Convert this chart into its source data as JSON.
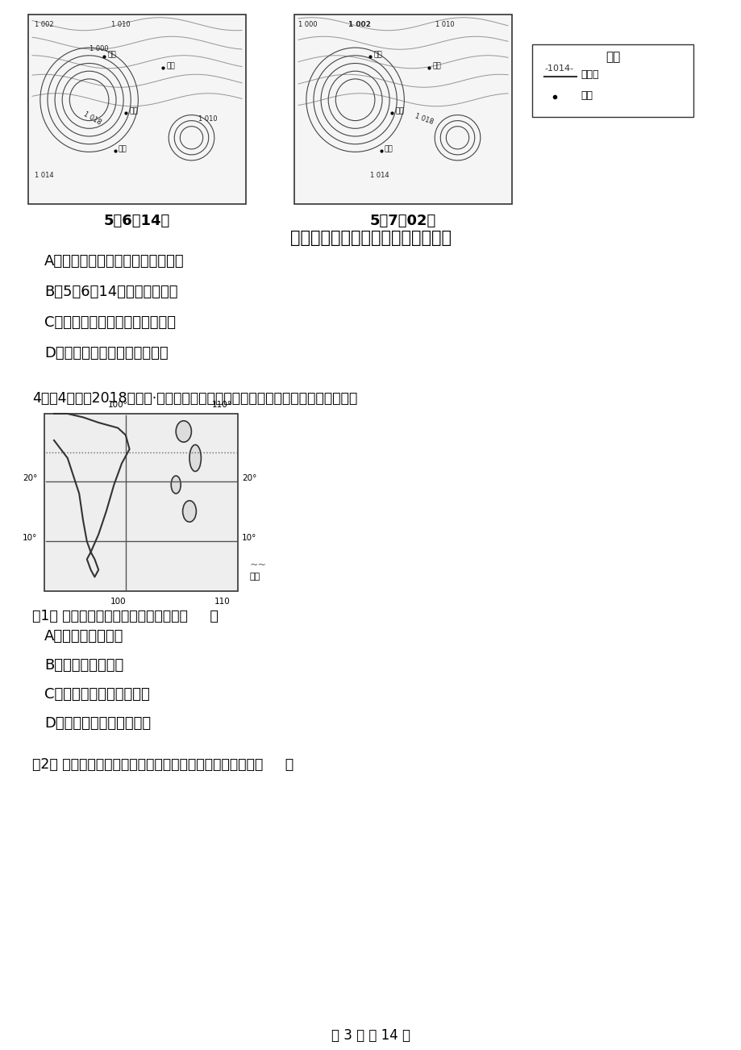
{
  "bg_color": "#ffffff",
  "text_color": "#000000",
  "page_width": 9.2,
  "page_height": 13.02,
  "map1_title": "5月6日14时",
  "map2_title": "5月7日02时",
  "main_caption": "海平面等压线分布图（单位：百帕）",
  "legend_title": "图例",
  "legend_line": "-1014- 等压线",
  "legend_dot": "• 城市",
  "options_top": [
    "A．东部部分地区经历了反气旋过境",
    "B．5月6日14时首尔吹西北风",
    "C．上海与台北之间存在冷锋系统",
    "D．台北的风向由东南变为东北"
  ],
  "question4": "4．（4分）（2018高二上·哈尔滨期中）下图为世界某区域略图，完成下列小题。",
  "sub_q1": "（1） 图示区域降水丰富，主要是由于（     ）",
  "options_bottom": [
    "A．反气旋频繁过境",
    "B．受沿岸寒流影响",
    "C．东北季风受到地形抬升",
    "D．西南季风带来丰沛水汽"
  ],
  "sub_q2": "（2） 图示区域夏季盛行风的成因与下列哪种地理事物有关（     ）",
  "footer": "第 3 页 共 14 页",
  "map1_labels": [
    "北京",
    "首尔",
    "上海",
    "台北",
    "1 002",
    "1 000",
    "1 010",
    "1 018",
    "1 014"
  ],
  "map2_labels": [
    "北京",
    "首尔",
    "上海",
    "台北",
    "1 002",
    "1 010",
    "1 018",
    "1 014"
  ],
  "region_labels": [
    "100°",
    "110°",
    "20°",
    "10°",
    "河流"
  ]
}
